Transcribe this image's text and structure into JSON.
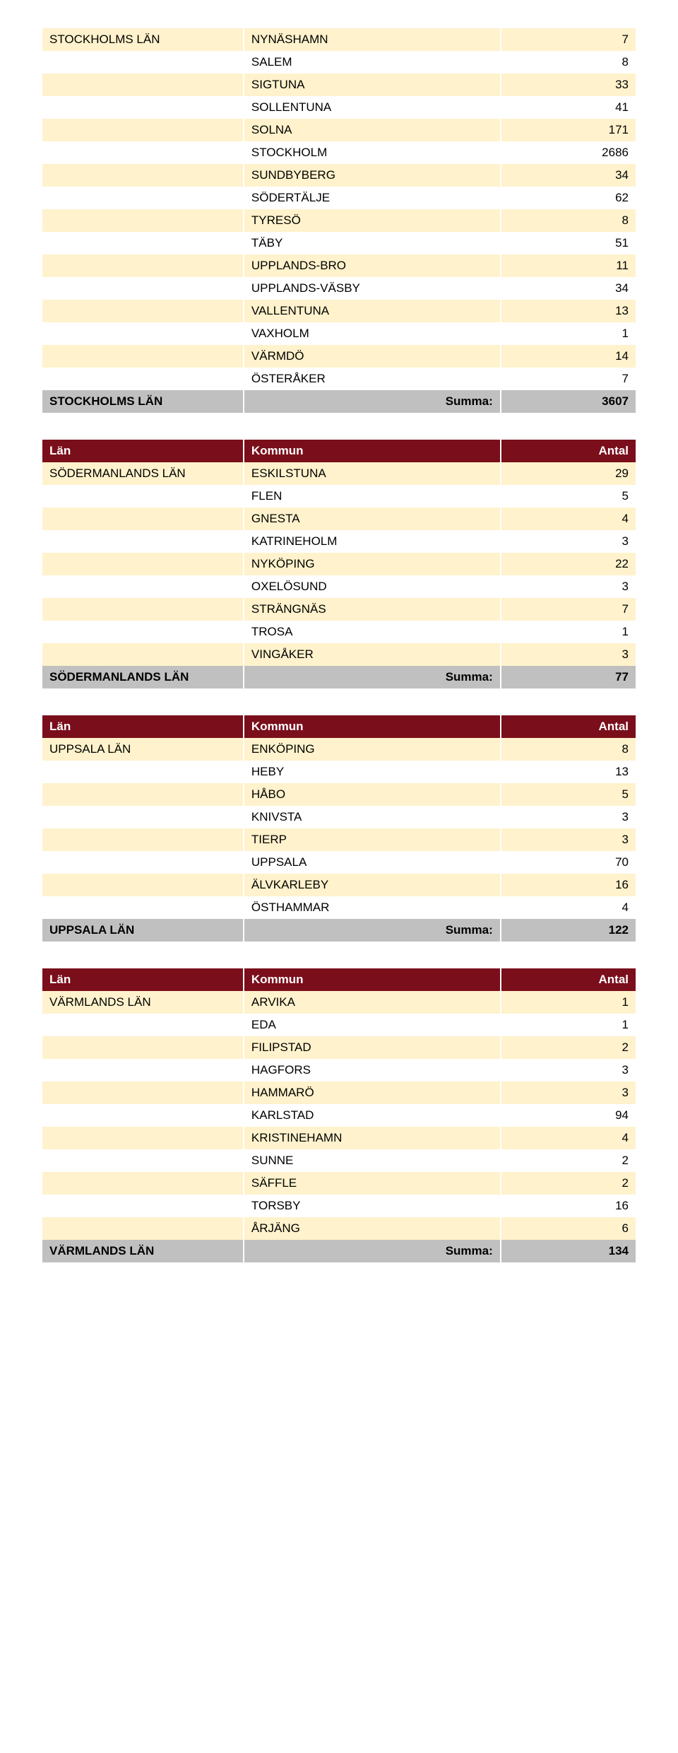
{
  "colors": {
    "header_bg": "#7a0e1b",
    "header_fg": "#ffffff",
    "row_highlight": "#fff2cc",
    "row_plain": "#ffffff",
    "row_summary": "#c0c0c0"
  },
  "column_headers": {
    "lan": "Län",
    "kommun": "Kommun",
    "antal": "Antal"
  },
  "summa_label": "Summa:",
  "blocks": [
    {
      "has_header": false,
      "lan_top": "STOCKHOLMS LÄN",
      "rows": [
        {
          "kommun": "NYNÄSHAMN",
          "antal": 7,
          "style": "yellow"
        },
        {
          "kommun": "SALEM",
          "antal": 8,
          "style": "white"
        },
        {
          "kommun": "SIGTUNA",
          "antal": 33,
          "style": "yellow"
        },
        {
          "kommun": "SOLLENTUNA",
          "antal": 41,
          "style": "white"
        },
        {
          "kommun": "SOLNA",
          "antal": 171,
          "style": "yellow"
        },
        {
          "kommun": "STOCKHOLM",
          "antal": 2686,
          "style": "white"
        },
        {
          "kommun": "SUNDBYBERG",
          "antal": 34,
          "style": "yellow"
        },
        {
          "kommun": "SÖDERTÄLJE",
          "antal": 62,
          "style": "white"
        },
        {
          "kommun": "TYRESÖ",
          "antal": 8,
          "style": "yellow"
        },
        {
          "kommun": "TÄBY",
          "antal": 51,
          "style": "white"
        },
        {
          "kommun": "UPPLANDS-BRO",
          "antal": 11,
          "style": "yellow"
        },
        {
          "kommun": "UPPLANDS-VÄSBY",
          "antal": 34,
          "style": "white"
        },
        {
          "kommun": "VALLENTUNA",
          "antal": 13,
          "style": "yellow"
        },
        {
          "kommun": "VAXHOLM",
          "antal": 1,
          "style": "white"
        },
        {
          "kommun": "VÄRMDÖ",
          "antal": 14,
          "style": "yellow"
        },
        {
          "kommun": "ÖSTERÅKER",
          "antal": 7,
          "style": "white"
        }
      ],
      "sum_lan": "STOCKHOLMS LÄN",
      "sum_total": 3607
    },
    {
      "has_header": true,
      "lan_top": "SÖDERMANLANDS LÄN",
      "rows": [
        {
          "kommun": "ESKILSTUNA",
          "antal": 29,
          "style": "yellow"
        },
        {
          "kommun": "FLEN",
          "antal": 5,
          "style": "white"
        },
        {
          "kommun": "GNESTA",
          "antal": 4,
          "style": "yellow"
        },
        {
          "kommun": "KATRINEHOLM",
          "antal": 3,
          "style": "white"
        },
        {
          "kommun": "NYKÖPING",
          "antal": 22,
          "style": "yellow"
        },
        {
          "kommun": "OXELÖSUND",
          "antal": 3,
          "style": "white"
        },
        {
          "kommun": "STRÄNGNÄS",
          "antal": 7,
          "style": "yellow"
        },
        {
          "kommun": "TROSA",
          "antal": 1,
          "style": "white"
        },
        {
          "kommun": "VINGÅKER",
          "antal": 3,
          "style": "yellow"
        }
      ],
      "sum_lan": "SÖDERMANLANDS LÄN",
      "sum_total": 77
    },
    {
      "has_header": true,
      "lan_top": "UPPSALA LÄN",
      "rows": [
        {
          "kommun": "ENKÖPING",
          "antal": 8,
          "style": "yellow"
        },
        {
          "kommun": "HEBY",
          "antal": 13,
          "style": "white"
        },
        {
          "kommun": "HÅBO",
          "antal": 5,
          "style": "yellow"
        },
        {
          "kommun": "KNIVSTA",
          "antal": 3,
          "style": "white"
        },
        {
          "kommun": "TIERP",
          "antal": 3,
          "style": "yellow"
        },
        {
          "kommun": "UPPSALA",
          "antal": 70,
          "style": "white"
        },
        {
          "kommun": "ÄLVKARLEBY",
          "antal": 16,
          "style": "yellow"
        },
        {
          "kommun": "ÖSTHAMMAR",
          "antal": 4,
          "style": "white"
        }
      ],
      "sum_lan": "UPPSALA LÄN",
      "sum_total": 122
    },
    {
      "has_header": true,
      "lan_top": "VÄRMLANDS LÄN",
      "rows": [
        {
          "kommun": "ARVIKA",
          "antal": 1,
          "style": "yellow"
        },
        {
          "kommun": "EDA",
          "antal": 1,
          "style": "white"
        },
        {
          "kommun": "FILIPSTAD",
          "antal": 2,
          "style": "yellow"
        },
        {
          "kommun": "HAGFORS",
          "antal": 3,
          "style": "white"
        },
        {
          "kommun": "HAMMARÖ",
          "antal": 3,
          "style": "yellow"
        },
        {
          "kommun": "KARLSTAD",
          "antal": 94,
          "style": "white"
        },
        {
          "kommun": "KRISTINEHAMN",
          "antal": 4,
          "style": "yellow"
        },
        {
          "kommun": "SUNNE",
          "antal": 2,
          "style": "white"
        },
        {
          "kommun": "SÄFFLE",
          "antal": 2,
          "style": "yellow"
        },
        {
          "kommun": "TORSBY",
          "antal": 16,
          "style": "white"
        },
        {
          "kommun": "ÅRJÄNG",
          "antal": 6,
          "style": "yellow"
        }
      ],
      "sum_lan": "VÄRMLANDS LÄN",
      "sum_total": 134
    }
  ]
}
